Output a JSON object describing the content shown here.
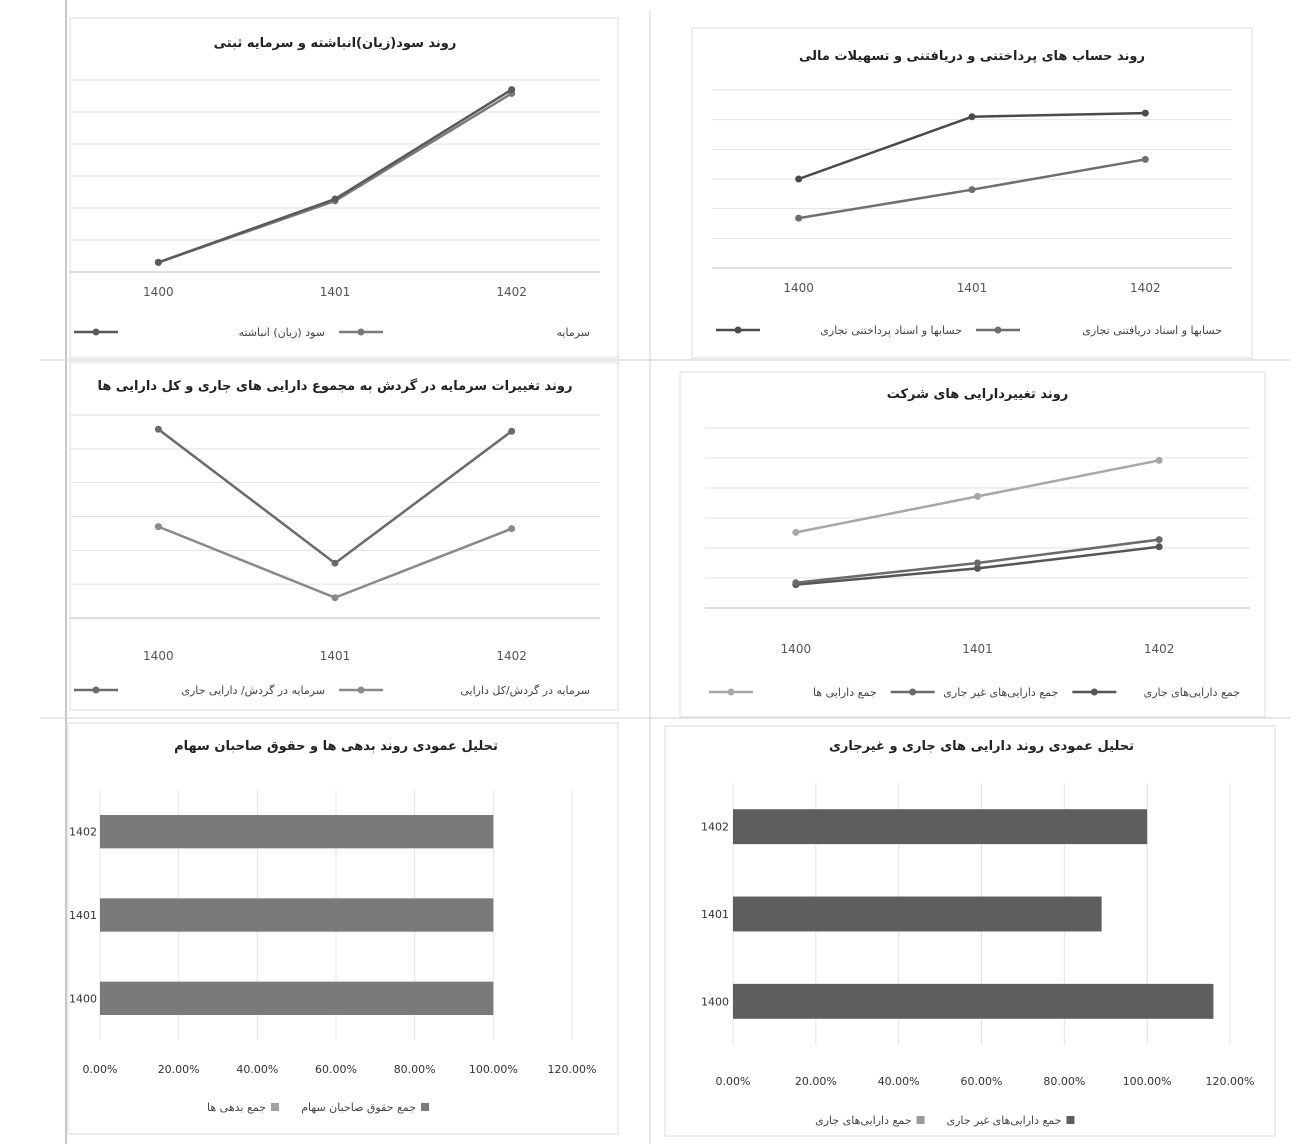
{
  "chart_data": [
    {
      "type": "line",
      "title": "روند حساب های پرداختنی و دریافتنی و تسهیلات مالی",
      "x": [
        "1400",
        "1401",
        "1402"
      ],
      "ylim": [
        0,
        100
      ],
      "grid": true,
      "legend": "bottom",
      "series": [
        {
          "name": "حسابها و اسناد دریافتنی تجاری",
          "values": [
            28,
            44,
            61
          ]
        },
        {
          "name": "حسابها و اسناد پرداختنی تجاری",
          "values": [
            50,
            85,
            87
          ]
        }
      ],
      "colors": [
        "#6f6f6f",
        "#4a4a4a"
      ]
    },
    {
      "type": "line",
      "title": "روند سود(زیان)انباشته و سرمایه ثبتی",
      "x": [
        "1400",
        "1401",
        "1402"
      ],
      "ylim": [
        0,
        100
      ],
      "grid": true,
      "legend": "bottom",
      "series": [
        {
          "name": "سرمایه",
          "values": [
            5,
            37,
            93
          ]
        },
        {
          "name": "سود (زیان) انباشته",
          "values": [
            5,
            38,
            95
          ]
        }
      ],
      "colors": [
        "#7a7a7a",
        "#5a5a5a"
      ]
    },
    {
      "type": "line",
      "title": "روند تغییردارایی های شرکت",
      "x": [
        "1400",
        "1401",
        "1402"
      ],
      "ylim": [
        0,
        100
      ],
      "grid": true,
      "legend": "bottom",
      "series": [
        {
          "name": "جمع دارایی‌های جاری",
          "values": [
            13,
            22,
            34
          ]
        },
        {
          "name": "جمع دارایی‌های غیر جاری",
          "values": [
            14,
            25,
            38
          ]
        },
        {
          "name": "جمع دارایی ها",
          "values": [
            42,
            62,
            82
          ]
        }
      ],
      "colors": [
        "#555555",
        "#6a6a6a",
        "#a8a8a8"
      ]
    },
    {
      "type": "line",
      "title": "روند تغییرات سرمایه در گردش به مجموع دارایی های جاری و کل دارایی ها",
      "x": [
        "1400",
        "1401",
        "1402"
      ],
      "ylim": [
        0,
        100
      ],
      "grid": true,
      "legend": "bottom",
      "series": [
        {
          "name": "سرمایه در گردش/کل دارایی",
          "values": [
            45,
            10,
            44
          ]
        },
        {
          "name": "سرمایه در گردش/ دارایی جاری",
          "values": [
            93,
            27,
            92
          ]
        }
      ],
      "colors": [
        "#8a8a8a",
        "#6a6a6a"
      ]
    },
    {
      "type": "bar",
      "orientation": "horizontal",
      "title": "تحلیل عمودی روند دارایی های جاری و غیرجاری",
      "categories": [
        "1402",
        "1401",
        "1400"
      ],
      "xlim": [
        0,
        120
      ],
      "ticks": [
        "0.00%",
        "20.00%",
        "40.00%",
        "60.00%",
        "80.00%",
        "100.00%",
        "120.00%"
      ],
      "grid": true,
      "legend": "bottom",
      "series": [
        {
          "name": "جمع دارایی‌های غیر جاری",
          "values": [
            100,
            89,
            116
          ]
        },
        {
          "name": "جمع دارایی‌های جاری",
          "values": [
            0,
            0,
            0
          ]
        }
      ],
      "colors": [
        "#5e5e5e",
        "#9a9a9a"
      ]
    },
    {
      "type": "bar",
      "orientation": "horizontal",
      "title": "تحلیل عمودی روند بدهی ها و حقوق صاحبان سهام",
      "categories": [
        "1402",
        "1401",
        "1400"
      ],
      "xlim": [
        0,
        120
      ],
      "ticks": [
        "0.00%",
        "20.00%",
        "40.00%",
        "60.00%",
        "80.00%",
        "100.00%",
        "120.00%"
      ],
      "grid": true,
      "legend": "bottom",
      "series": [
        {
          "name": "جمع حقوق صاحبان سهام",
          "values": [
            100,
            100,
            100
          ]
        },
        {
          "name": "جمع بدهی ها",
          "values": [
            0,
            0,
            0
          ]
        }
      ],
      "colors": [
        "#7a7a7a",
        "#a0a0a0"
      ]
    }
  ]
}
